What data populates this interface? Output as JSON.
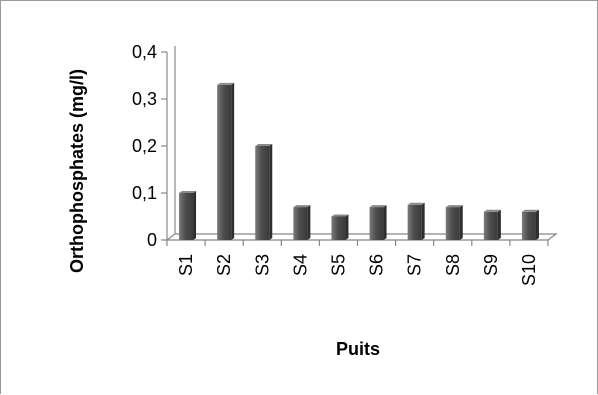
{
  "chart_data": {
    "type": "bar",
    "categories": [
      "S1",
      "S2",
      "S3",
      "S4",
      "S5",
      "S6",
      "S7",
      "S8",
      "S9",
      "S10"
    ],
    "values": [
      0.1,
      0.33,
      0.2,
      0.07,
      0.05,
      0.07,
      0.075,
      0.07,
      0.06,
      0.06
    ],
    "xlabel": "Puits",
    "ylabel": "Orthophosphates (mg/l)",
    "ylim": [
      0,
      0.4
    ],
    "yticks": [
      "0",
      "0,1",
      "0,2",
      "0,3",
      "0,4"
    ],
    "grid": false,
    "legend": "none",
    "bar_color": "#5a5a5a"
  }
}
